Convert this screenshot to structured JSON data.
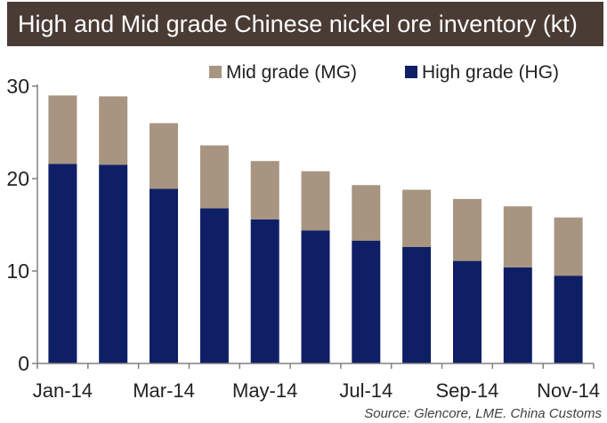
{
  "chart_data": {
    "type": "bar",
    "stacked": true,
    "title": "High and Mid grade Chinese nickel ore inventory (kt)",
    "categories": [
      "Jan-14",
      "Feb-14",
      "Mar-14",
      "Apr-14",
      "May-14",
      "Jun-14",
      "Jul-14",
      "Aug-14",
      "Sep-14",
      "Oct-14",
      "Nov-14"
    ],
    "x_tick_labels": [
      "Jan-14",
      "Mar-14",
      "May-14",
      "Jul-14",
      "Sep-14",
      "Nov-14"
    ],
    "series": [
      {
        "name": "High grade (HG)",
        "color": "#0f1f66",
        "values": [
          21.6,
          21.5,
          18.9,
          16.8,
          15.6,
          14.4,
          13.3,
          12.6,
          11.1,
          10.4,
          9.5
        ]
      },
      {
        "name": "Mid grade (MG)",
        "color": "#a89581",
        "values": [
          7.4,
          7.4,
          7.1,
          6.8,
          6.3,
          6.4,
          6.0,
          6.2,
          6.7,
          6.6,
          6.3
        ]
      }
    ],
    "ylim": [
      0,
      30
    ],
    "yticks": [
      0,
      10,
      20,
      30
    ],
    "grid": false,
    "legend": {
      "position": "top-right",
      "order": [
        "Mid grade (MG)",
        "High grade (HG)"
      ]
    },
    "xlabel": "",
    "ylabel": ""
  },
  "source": "Source: Glencore, LME. China Customs"
}
